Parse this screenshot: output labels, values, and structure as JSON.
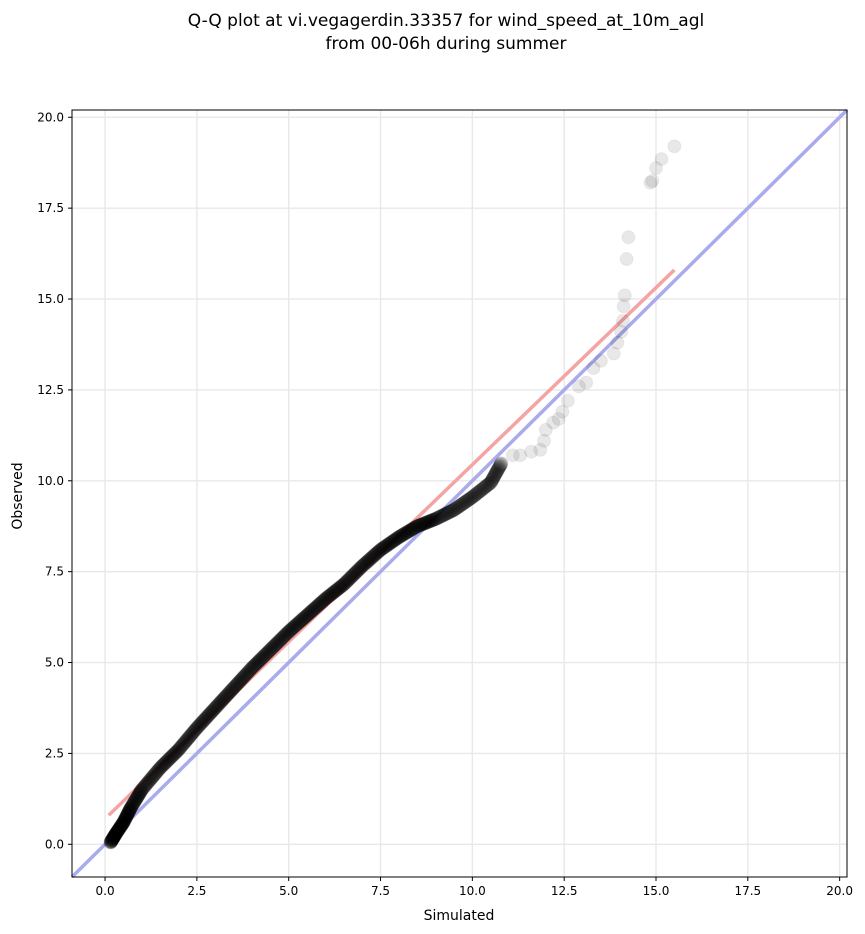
{
  "chart_data": {
    "type": "scatter",
    "title_lines": [
      "Q-Q plot at vi.vegagerdin.33357 for wind_speed_at_10m_agl",
      "from 00-06h during summer"
    ],
    "xlabel": "Simulated",
    "ylabel": "Observed",
    "xlim": [
      -0.9,
      20.2
    ],
    "ylim": [
      -0.9,
      20.2
    ],
    "xticks": [
      0.0,
      2.5,
      5.0,
      7.5,
      10.0,
      12.5,
      15.0,
      17.5,
      20.0
    ],
    "yticks": [
      0.0,
      2.5,
      5.0,
      7.5,
      10.0,
      12.5,
      15.0,
      17.5,
      20.0
    ],
    "xtick_labels": [
      "0.0",
      "2.5",
      "5.0",
      "7.5",
      "10.0",
      "12.5",
      "15.0",
      "17.5",
      "20.0"
    ],
    "ytick_labels": [
      "0.0",
      "2.5",
      "5.0",
      "7.5",
      "10.0",
      "12.5",
      "15.0",
      "17.5",
      "20.0"
    ],
    "grid": true,
    "reference_lines": [
      {
        "kind": "identity",
        "x": [
          -0.9,
          20.2
        ],
        "y": [
          -0.9,
          20.2
        ],
        "color": "#aaaaee"
      },
      {
        "kind": "fit",
        "x": [
          0.1,
          15.5
        ],
        "y": [
          0.8,
          15.8
        ],
        "color": "#f4a4a4"
      }
    ],
    "dense_curve": [
      [
        0.15,
        0.05
      ],
      [
        0.3,
        0.3
      ],
      [
        0.5,
        0.6
      ],
      [
        0.7,
        1.0
      ],
      [
        1.0,
        1.5
      ],
      [
        1.5,
        2.1
      ],
      [
        2.0,
        2.6
      ],
      [
        2.5,
        3.2
      ],
      [
        3.0,
        3.75
      ],
      [
        3.5,
        4.3
      ],
      [
        4.0,
        4.85
      ],
      [
        4.5,
        5.35
      ],
      [
        5.0,
        5.85
      ],
      [
        5.5,
        6.3
      ],
      [
        6.0,
        6.75
      ],
      [
        6.5,
        7.15
      ],
      [
        7.0,
        7.65
      ],
      [
        7.5,
        8.1
      ],
      [
        8.0,
        8.45
      ],
      [
        8.5,
        8.75
      ],
      [
        9.0,
        8.95
      ],
      [
        9.5,
        9.2
      ],
      [
        10.0,
        9.55
      ],
      [
        10.5,
        9.95
      ],
      [
        10.8,
        10.5
      ]
    ],
    "tail_points": [
      [
        11.1,
        10.7
      ],
      [
        11.3,
        10.7
      ],
      [
        11.6,
        10.8
      ],
      [
        11.85,
        10.85
      ],
      [
        11.95,
        11.1
      ],
      [
        12.0,
        11.4
      ],
      [
        12.2,
        11.6
      ],
      [
        12.35,
        11.7
      ],
      [
        12.45,
        11.9
      ],
      [
        12.6,
        12.2
      ],
      [
        12.9,
        12.6
      ],
      [
        13.1,
        12.7
      ],
      [
        13.3,
        13.1
      ],
      [
        13.5,
        13.3
      ],
      [
        13.85,
        13.5
      ],
      [
        13.95,
        13.8
      ],
      [
        14.05,
        14.1
      ],
      [
        14.1,
        14.4
      ],
      [
        14.12,
        14.8
      ],
      [
        14.15,
        15.1
      ],
      [
        14.2,
        16.1
      ],
      [
        14.25,
        16.7
      ],
      [
        14.85,
        18.2
      ],
      [
        14.9,
        18.25
      ],
      [
        15.0,
        18.6
      ],
      [
        15.15,
        18.85
      ],
      [
        15.5,
        19.2
      ]
    ],
    "colors": {
      "points": "#000000",
      "fit_line": "#f4a4a4",
      "identity_line": "#aaaaee",
      "grid": "#e8e8e8"
    }
  }
}
